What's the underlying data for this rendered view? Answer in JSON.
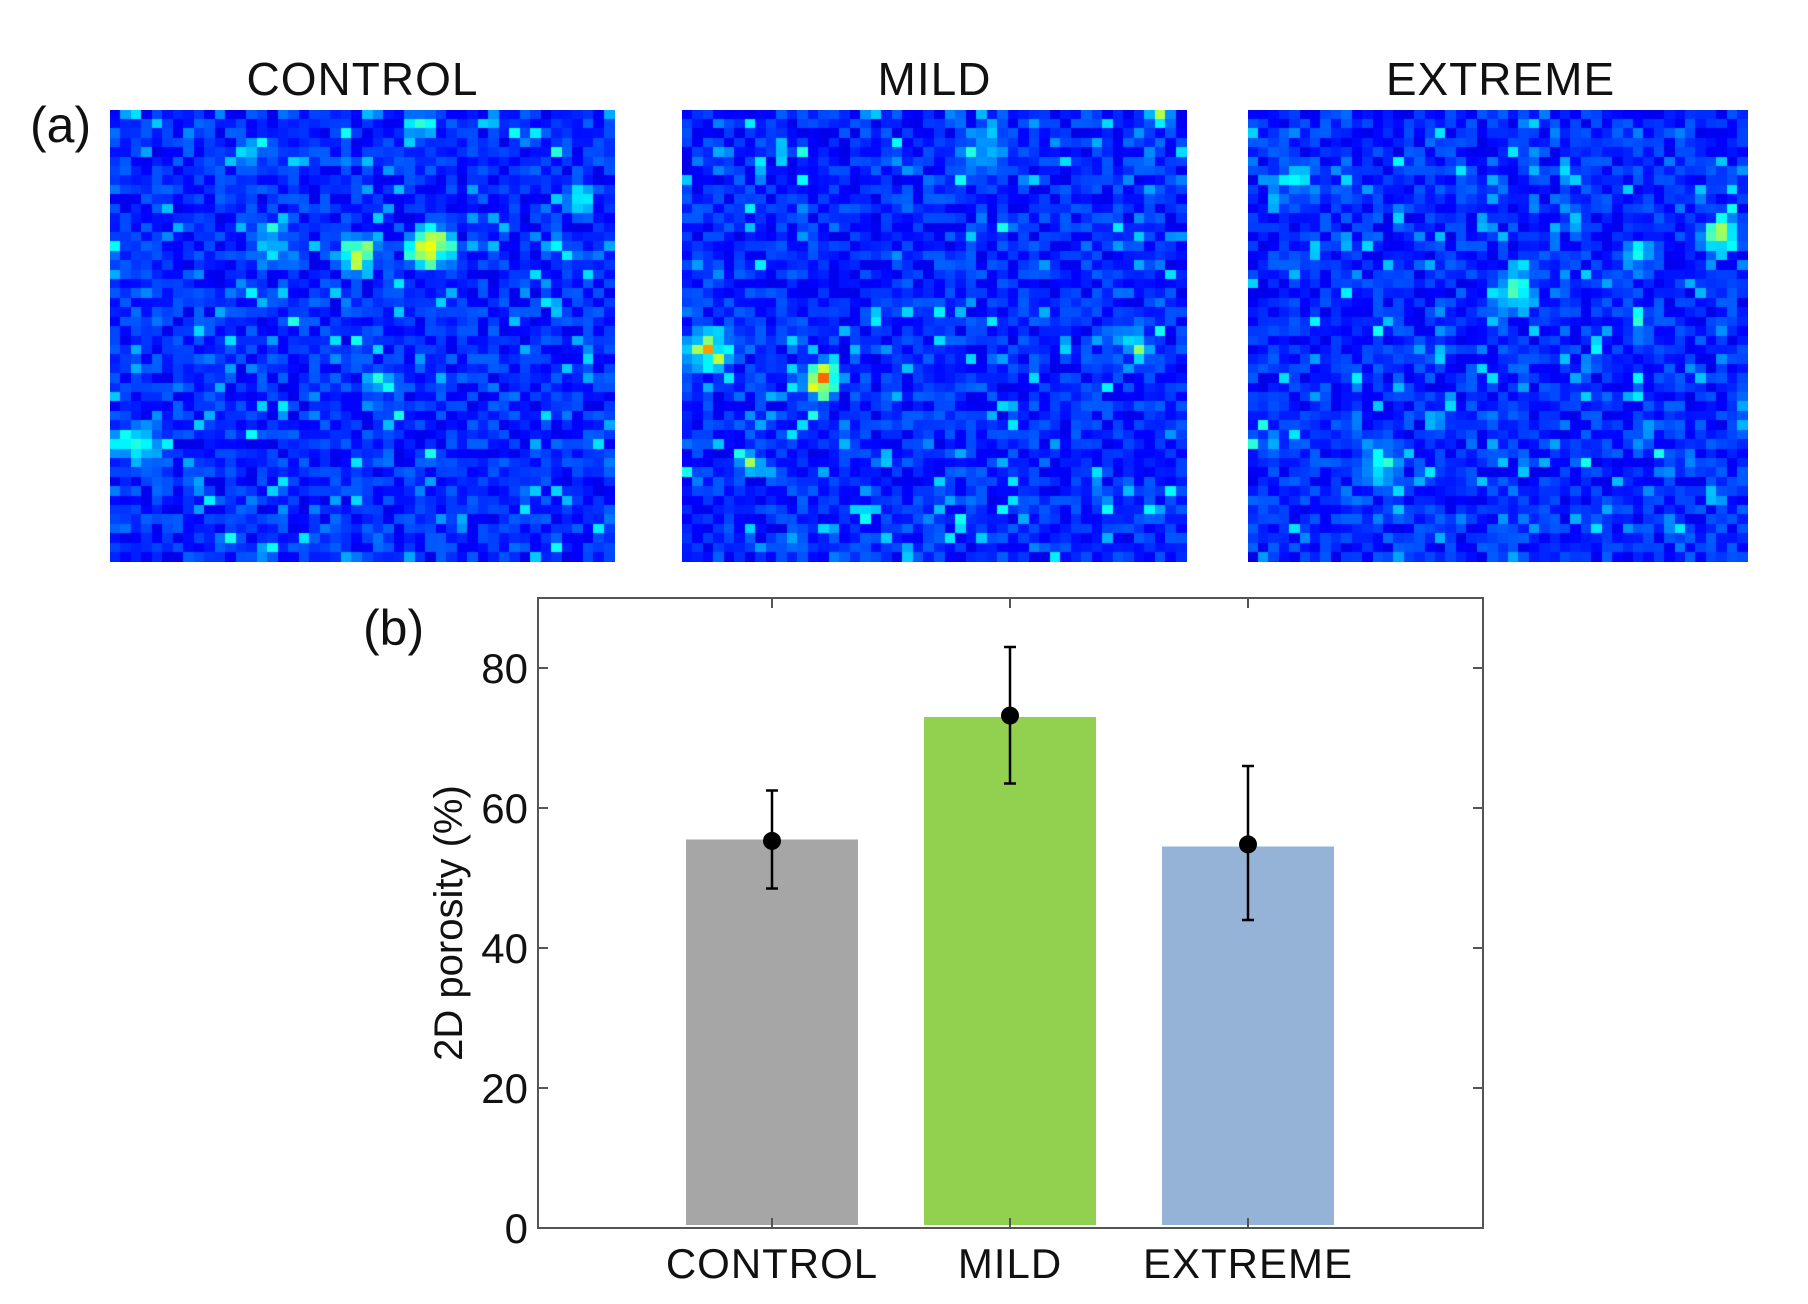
{
  "panel_a": {
    "label": "(a)",
    "heatmaps": [
      {
        "title": "CONTROL",
        "palette": "jet"
      },
      {
        "title": "MILD",
        "palette": "jet"
      },
      {
        "title": "EXTREME",
        "palette": "jet"
      }
    ]
  },
  "panel_b": {
    "label": "(b)"
  },
  "colors": {
    "control": "#a6a6a6",
    "mild": "#92d050",
    "extreme": "#95b3d7",
    "error_bar": "#000000",
    "axis": "#555555"
  },
  "chart_data": {
    "type": "bar",
    "title": "",
    "xlabel": "",
    "ylabel": "2D porosity (%)",
    "categories": [
      "CONTROL",
      "MILD",
      "EXTREME"
    ],
    "values": [
      55.5,
      73,
      54.5
    ],
    "means": [
      55.3,
      73.2,
      54.8
    ],
    "error_low": [
      48.5,
      63.5,
      44
    ],
    "error_high": [
      62.5,
      83,
      66
    ],
    "ylim": [
      0,
      90
    ],
    "yticks": [
      0,
      20,
      40,
      60,
      80
    ],
    "grid": false
  }
}
